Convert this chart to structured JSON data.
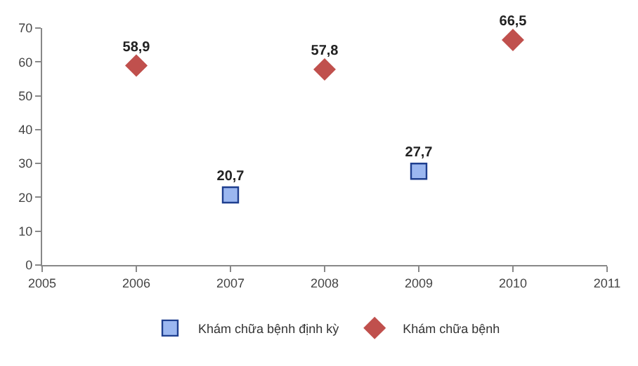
{
  "chart_data": {
    "type": "scatter",
    "xlim": [
      2005,
      2011
    ],
    "xticks": [
      2005,
      2006,
      2007,
      2008,
      2009,
      2010,
      2011
    ],
    "ylim": [
      0,
      70
    ],
    "yticks": [
      0,
      10,
      20,
      30,
      40,
      50,
      60,
      70
    ],
    "legend": "bottom",
    "series": [
      {
        "name": "Khám chữa bệnh định kỳ",
        "color": "#9bb7f0",
        "marker": "square",
        "x": [
          2007,
          2009
        ],
        "values": [
          20.7,
          27.7
        ],
        "value_labels": [
          "20,7",
          "27,7"
        ]
      },
      {
        "name": "Khám chữa bệnh",
        "color": "#c0504d",
        "marker": "diamond",
        "x": [
          2006,
          2008,
          2010
        ],
        "values": [
          58.9,
          57.8,
          66.5
        ],
        "value_labels": [
          "58,9",
          "57,8",
          "66,5"
        ]
      }
    ]
  }
}
